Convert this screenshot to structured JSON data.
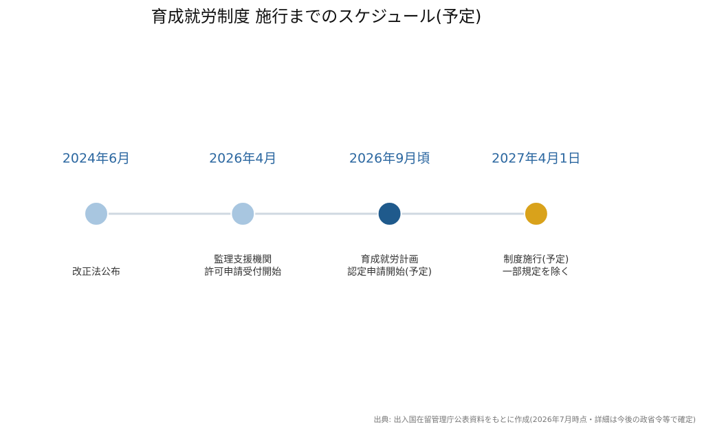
{
  "title": "育成就労制度 施行までのスケジュール(予定)",
  "events": [
    {
      "date": "2024年6月",
      "lines": [
        "改正法公布"
      ],
      "color": "#a8c6e0"
    },
    {
      "date": "2026年4月",
      "lines": [
        "監理支援機関",
        "許可申請受付開始"
      ],
      "color": "#a8c6e0"
    },
    {
      "date": "2026年9月頃",
      "lines": [
        "育成就労計画",
        "認定申請開始(予定)"
      ],
      "color": "#1f5a8c"
    },
    {
      "date": "2027年4月1日",
      "lines": [
        "制度施行(予定)",
        "一部規定を除く"
      ],
      "color": "#d9a21b"
    }
  ],
  "source": "出典: 出入国在留管理庁公表資料をもとに作成(2026年7月時点・詳細は今後の政省令等で確定)"
}
